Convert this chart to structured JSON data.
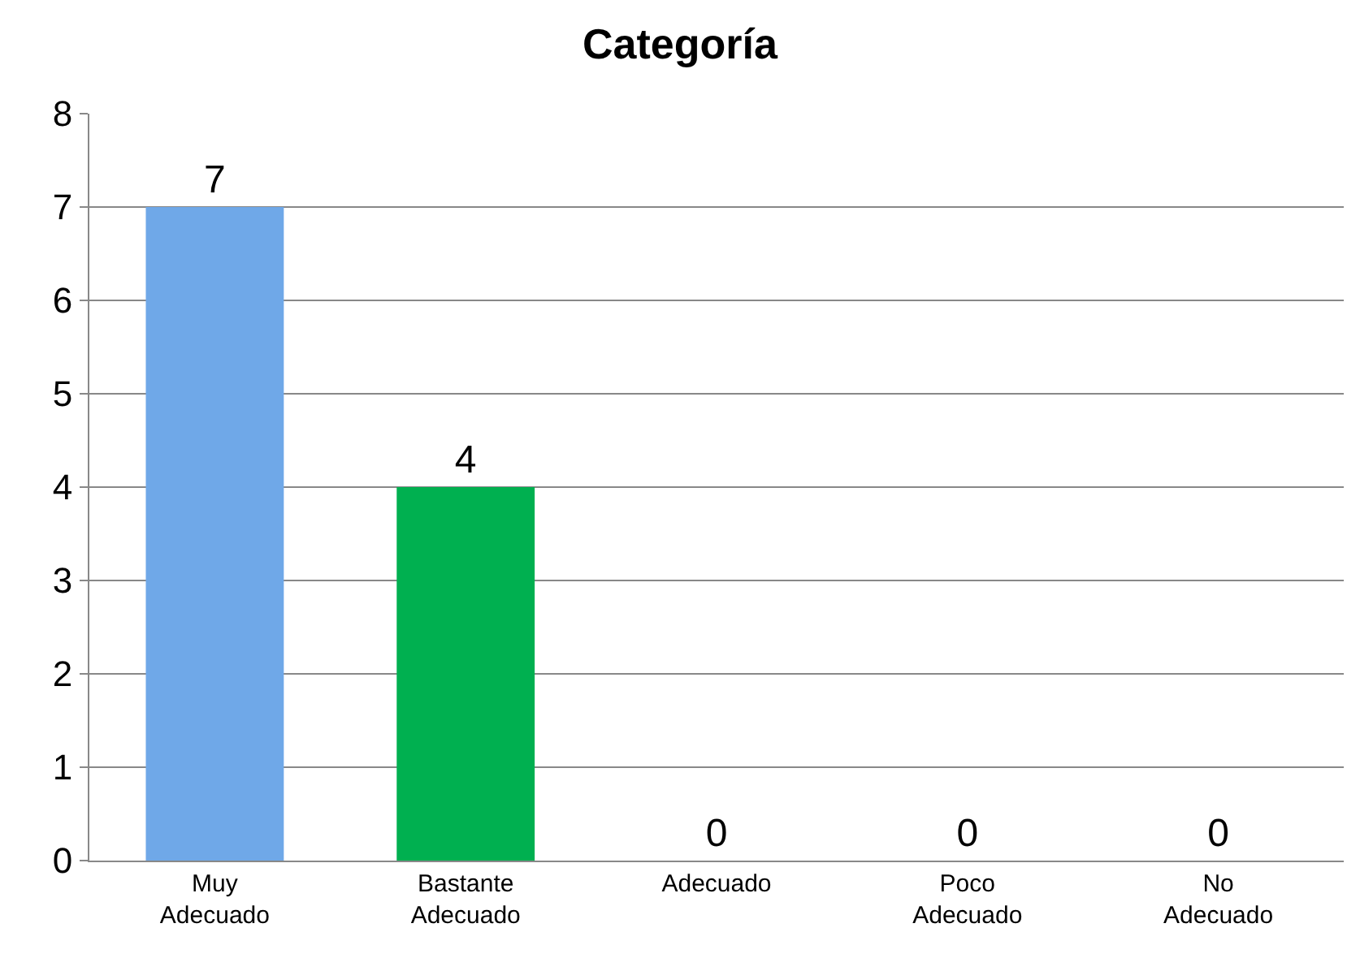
{
  "chart_data": {
    "type": "bar",
    "title": "Categoría",
    "categories": [
      "Muy Adecuado",
      "Bastante Adecuado",
      "Adecuado",
      "Poco Adecuado",
      "No Adecuado"
    ],
    "values": [
      7,
      4,
      0,
      0,
      0
    ],
    "colors": [
      "#6fa8e8",
      "#00b050",
      "#00b050",
      "#00b050",
      "#00b050"
    ],
    "ylim": [
      0,
      8
    ],
    "yticks": [
      0,
      1,
      2,
      3,
      4,
      5,
      6,
      7,
      8
    ],
    "grid": "y",
    "data_labels": true
  }
}
